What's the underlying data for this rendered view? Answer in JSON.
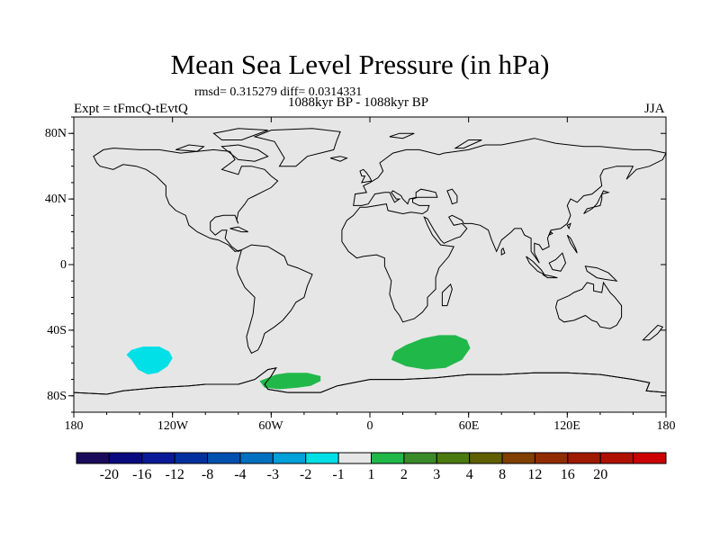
{
  "title": "Mean Sea Level Pressure (in hPa)",
  "stats_text": "rmsd= 0.315279 diff= 0.0314331",
  "period_text": "1088kyr BP - 1088kyr BP",
  "experiment_text": "Expt = tFmcQ-tEvtQ",
  "season_text": "JJA",
  "map": {
    "projection": "cylindrical-equidistant",
    "lon_range": [
      -180,
      180
    ],
    "lat_range": [
      -90,
      90
    ],
    "background_color": "#e6e6e6",
    "y_tick_labels": [
      "80N",
      "40N",
      "0",
      "40S",
      "80S"
    ],
    "x_tick_labels": [
      "180",
      "120W",
      "60W",
      "0",
      "60E",
      "120E",
      "180"
    ]
  },
  "anomalies": [
    {
      "name": "south-pacific-negative",
      "level": "-2 to -1",
      "color": "#00e0e6",
      "lon_center": -132,
      "lat_center": -58
    },
    {
      "name": "weddell-sea-positive",
      "level": "1 to 2",
      "color": "#21b84a",
      "lon_center": -55,
      "lat_center": -71
    },
    {
      "name": "south-indian-positive",
      "level": "1 to 2",
      "color": "#21b84a",
      "lon_center": 37,
      "lat_center": -55
    }
  ],
  "colorbar": {
    "colors": [
      "#1a0a5a",
      "#0a0a80",
      "#0a1a96",
      "#0030a0",
      "#0050b0",
      "#0070c0",
      "#00a0d8",
      "#00e0e6",
      "#e6e6e6",
      "#21b84a",
      "#3a8a2a",
      "#4a7a10",
      "#606000",
      "#804000",
      "#902c00",
      "#a01a00",
      "#b01000",
      "#cc0000"
    ],
    "labels": [
      "-20",
      "-16",
      "-12",
      "-8",
      "-4",
      "-3",
      "-2",
      "-1",
      "1",
      "2",
      "3",
      "4",
      "8",
      "12",
      "16",
      "20"
    ]
  }
}
